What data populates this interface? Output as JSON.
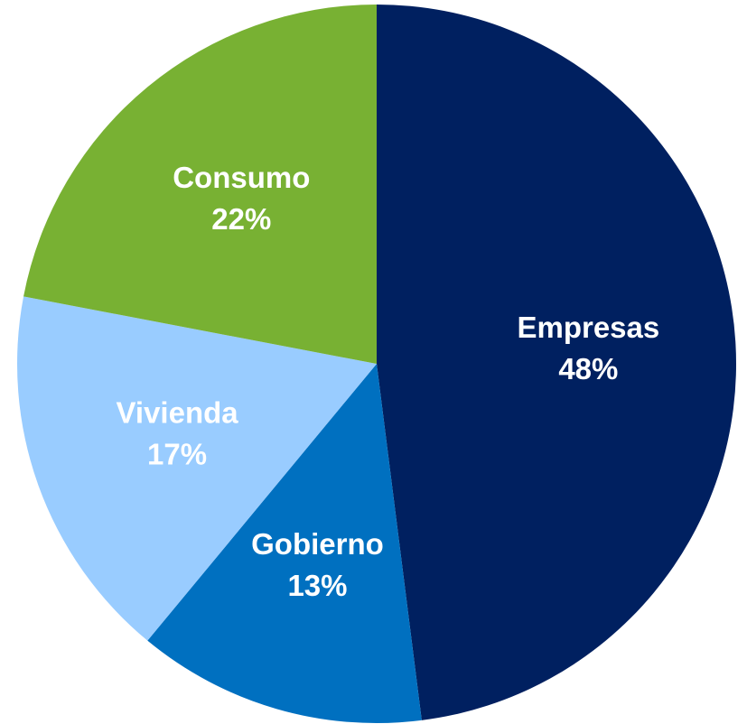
{
  "chart_data": {
    "type": "pie",
    "categories": [
      "Empresas",
      "Gobierno",
      "Vivienda",
      "Consumo"
    ],
    "values": [
      48,
      13,
      17,
      22
    ],
    "value_labels": [
      "48%",
      "13%",
      "17%",
      "22%"
    ],
    "colors": [
      "#002060",
      "#0070c0",
      "#99ccff",
      "#78b133"
    ]
  }
}
